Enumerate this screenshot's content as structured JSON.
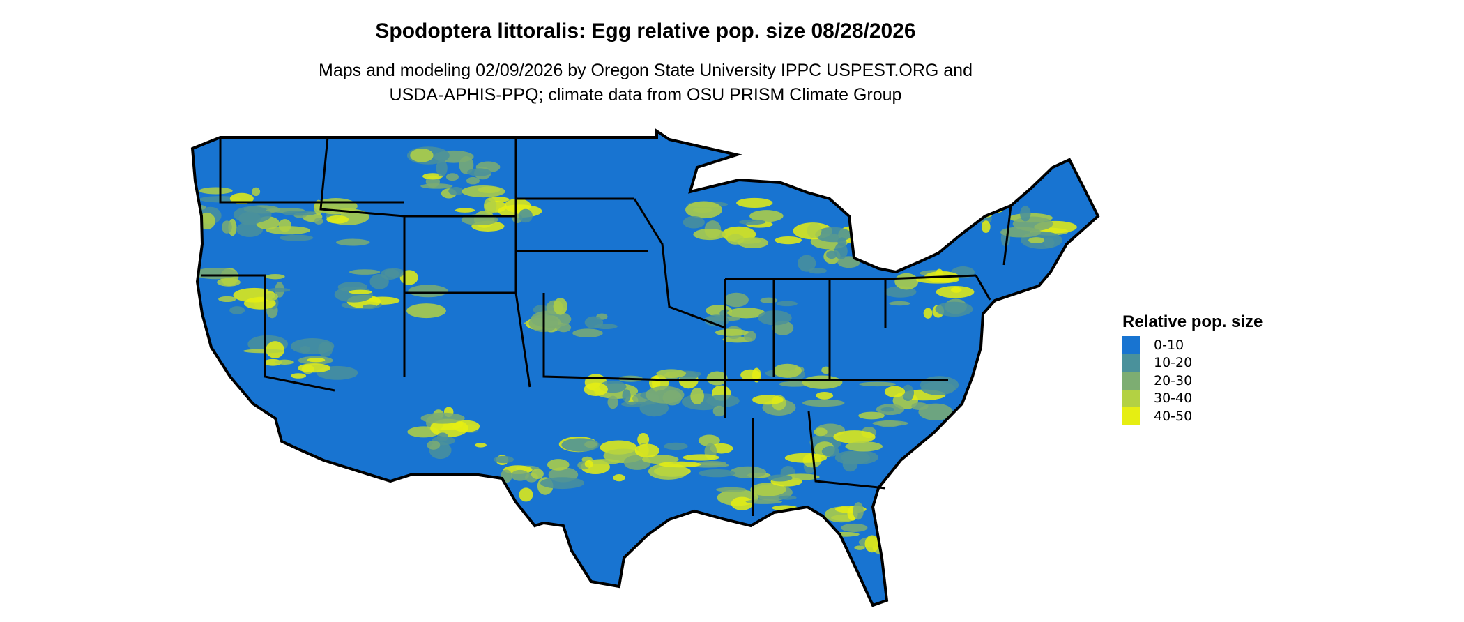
{
  "title": "Spodoptera littoralis: Egg relative pop. size 08/28/2026",
  "subtitle_lines": [
    "Maps and modeling 02/09/2026 by Oregon State University IPPC USPEST.ORG and",
    "USDA-APHIS-PPQ; climate data from OSU PRISM Climate Group"
  ],
  "legend": {
    "title": "Relative pop. size",
    "items": [
      {
        "label": "0-10",
        "color": "#1874d1"
      },
      {
        "label": "10-20",
        "color": "#4a919b"
      },
      {
        "label": "20-30",
        "color": "#7dad72"
      },
      {
        "label": "30-40",
        "color": "#b3d143"
      },
      {
        "label": "40-50",
        "color": "#e6ee12"
      }
    ]
  },
  "map": {
    "region": "Contiguous United States",
    "boundary_color": "#000000",
    "dominant_class": "0-10"
  }
}
